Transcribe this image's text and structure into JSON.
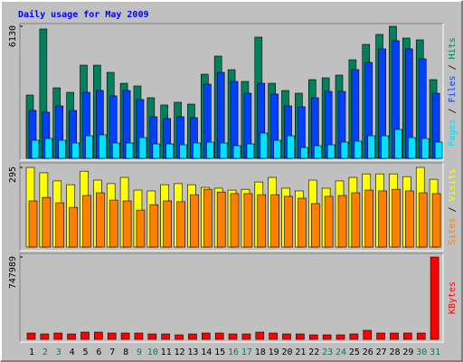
{
  "chart_data": [
    {
      "type": "bar",
      "title": "Daily usage for May 2009",
      "ylim": [
        0,
        6130
      ],
      "yticks": [
        6130
      ],
      "series": [
        {
          "name": "Hits",
          "color": "#00805c",
          "values": [
            2939,
            6004,
            3275,
            3065,
            4324,
            4324,
            3989,
            3485,
            3359,
            2813,
            2477,
            2603,
            2519,
            3905,
            4744,
            4115,
            3569,
            5626,
            3485,
            3149,
            3023,
            3653,
            3737,
            3863,
            4576,
            5290,
            5752,
            6130,
            5584,
            5500,
            3653
          ]
        },
        {
          "name": "Files",
          "color": "#0040ff",
          "values": [
            2225,
            2141,
            2435,
            2225,
            3065,
            3149,
            2897,
            3149,
            2729,
            1931,
            1847,
            1931,
            1889,
            3443,
            3989,
            3569,
            3023,
            3485,
            2981,
            2435,
            2393,
            2813,
            3107,
            3107,
            4115,
            4451,
            5080,
            5458,
            5080,
            4618,
            3023
          ]
        },
        {
          "name": "Pages",
          "color": "#00e0ff",
          "values": [
            840,
            924,
            840,
            714,
            1050,
            1092,
            714,
            714,
            966,
            672,
            672,
            630,
            714,
            756,
            714,
            588,
            672,
            1176,
            840,
            1050,
            504,
            588,
            630,
            756,
            798,
            1050,
            1050,
            1344,
            966,
            924,
            756
          ]
        }
      ]
    },
    {
      "type": "bar",
      "ylim": [
        0,
        295
      ],
      "yticks": [
        295
      ],
      "series": [
        {
          "name": "Visits",
          "color": "#ffff00",
          "values": [
            295,
            275,
            245,
            231,
            281,
            248,
            235,
            258,
            211,
            208,
            231,
            235,
            231,
            221,
            218,
            211,
            214,
            241,
            258,
            218,
            208,
            248,
            218,
            245,
            258,
            271,
            271,
            271,
            261,
            295,
            251
          ]
        },
        {
          "name": "Sites",
          "color": "#ff8000",
          "values": [
            171,
            184,
            164,
            147,
            191,
            201,
            174,
            171,
            137,
            157,
            171,
            168,
            194,
            214,
            204,
            198,
            198,
            194,
            194,
            188,
            181,
            161,
            188,
            191,
            201,
            211,
            208,
            214,
            208,
            201,
            198
          ]
        }
      ]
    },
    {
      "type": "bar",
      "ylim": [
        0,
        747989
      ],
      "yticks": [
        747989
      ],
      "categories": [
        "1",
        "2",
        "3",
        "4",
        "5",
        "6",
        "7",
        "8",
        "9",
        "10",
        "11",
        "12",
        "13",
        "14",
        "15",
        "16",
        "17",
        "18",
        "19",
        "20",
        "21",
        "22",
        "23",
        "24",
        "25",
        "26",
        "27",
        "28",
        "29",
        "30",
        "31"
      ],
      "category_colors": [
        "#000000",
        "#00805c",
        "#00805c",
        "#000000",
        "#000000",
        "#000000",
        "#000000",
        "#000000",
        "#00805c",
        "#00805c",
        "#000000",
        "#000000",
        "#000000",
        "#000000",
        "#000000",
        "#00805c",
        "#00805c",
        "#000000",
        "#000000",
        "#000000",
        "#000000",
        "#000000",
        "#00805c",
        "#00805c",
        "#000000",
        "#000000",
        "#000000",
        "#000000",
        "#000000",
        "#00805c",
        "#00805c"
      ],
      "series": [
        {
          "name": "KBytes",
          "color": "#ff0000",
          "values": [
            57540,
            49320,
            57540,
            49320,
            65760,
            65760,
            57540,
            57540,
            57540,
            49320,
            49320,
            41100,
            49320,
            57540,
            57540,
            49320,
            49320,
            65760,
            57540,
            49320,
            49320,
            41100,
            41100,
            41100,
            49320,
            82200,
            57540,
            57540,
            57540,
            57540,
            747989
          ]
        }
      ]
    }
  ]
}
